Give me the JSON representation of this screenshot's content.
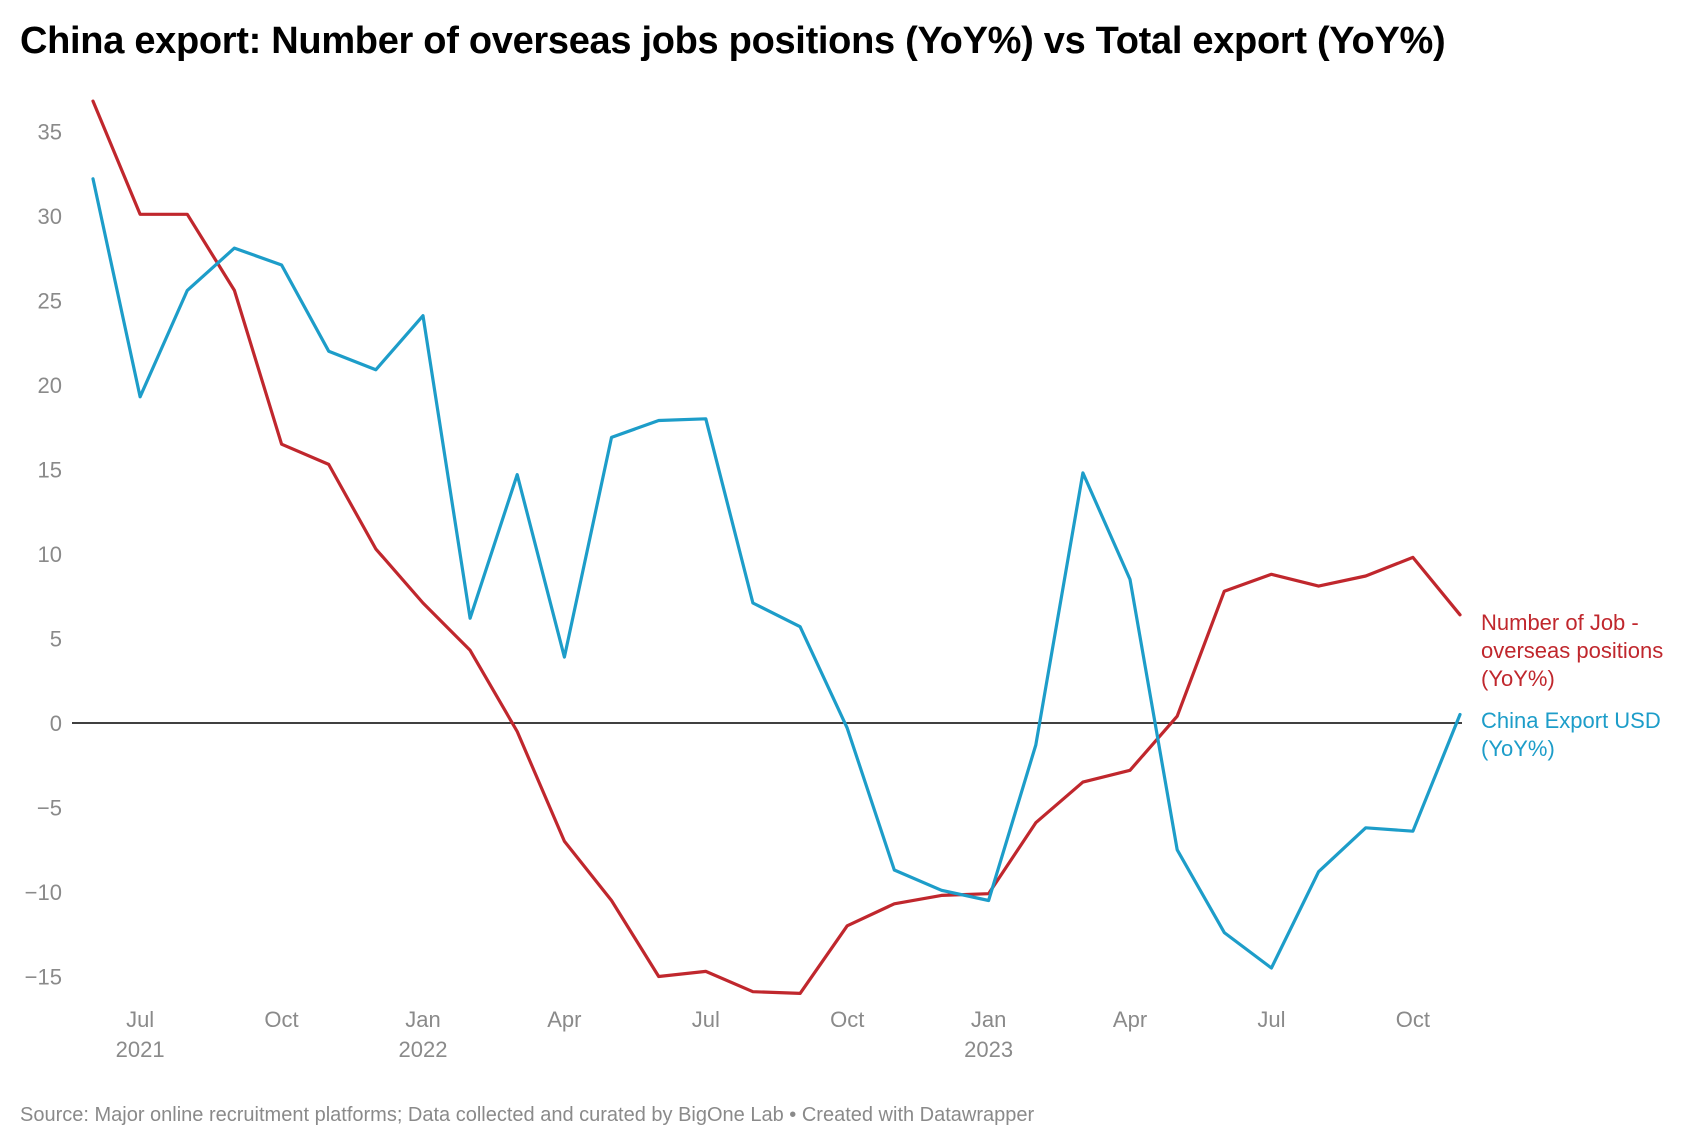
{
  "chart_data": {
    "type": "line",
    "title": "China export: Number of overseas jobs positions (YoY%) vs Total export (YoY%)",
    "source": "Source: Major online recruitment platforms; Data collected and curated by BigOne Lab • Created with Datawrapper",
    "x": [
      "2021-06",
      "2021-07",
      "2021-08",
      "2021-09",
      "2021-10",
      "2021-11",
      "2021-12",
      "2022-01",
      "2022-02",
      "2022-03",
      "2022-04",
      "2022-05",
      "2022-06",
      "2022-07",
      "2022-08",
      "2022-09",
      "2022-10",
      "2022-11",
      "2022-12",
      "2023-01",
      "2023-02",
      "2023-03",
      "2023-04",
      "2023-05",
      "2023-06",
      "2023-07",
      "2023-08",
      "2023-09",
      "2023-10",
      "2023-11"
    ],
    "x_ticks": [
      {
        "x": "2021-07",
        "label": "Jul",
        "year": "2021"
      },
      {
        "x": "2021-10",
        "label": "Oct",
        "year": ""
      },
      {
        "x": "2022-01",
        "label": "Jan",
        "year": "2022"
      },
      {
        "x": "2022-04",
        "label": "Apr",
        "year": ""
      },
      {
        "x": "2022-07",
        "label": "Jul",
        "year": ""
      },
      {
        "x": "2022-10",
        "label": "Oct",
        "year": ""
      },
      {
        "x": "2023-01",
        "label": "Jan",
        "year": "2023"
      },
      {
        "x": "2023-04",
        "label": "Apr",
        "year": ""
      },
      {
        "x": "2023-07",
        "label": "Jul",
        "year": ""
      },
      {
        "x": "2023-10",
        "label": "Oct",
        "year": ""
      }
    ],
    "y_ticks": [
      35,
      30,
      25,
      20,
      15,
      10,
      5,
      0,
      -5,
      -10,
      -15
    ],
    "y_tick_labels": [
      "35",
      "30",
      "25",
      "20",
      "15",
      "10",
      "5",
      "0",
      "−5",
      "−10",
      "−15"
    ],
    "ylim": [
      -16.5,
      37
    ],
    "grid": false,
    "zero_line": true,
    "series": [
      {
        "name": "Number of Job - overseas positions (YoY%)",
        "label_lines": [
          "Number of Job -",
          "overseas positions",
          "(YoY%)"
        ],
        "color": "#c0272d",
        "values": [
          36.8,
          30.1,
          30.1,
          25.6,
          16.5,
          15.3,
          10.3,
          7.1,
          4.3,
          -0.5,
          -7.0,
          -10.5,
          -15.0,
          -14.7,
          -15.9,
          -16.0,
          -12.0,
          -10.7,
          -10.2,
          -10.1,
          -5.9,
          -3.5,
          -2.8,
          0.4,
          7.8,
          8.8,
          8.1,
          8.7,
          9.8,
          6.4
        ]
      },
      {
        "name": "China Export USD (YoY%)",
        "label_lines": [
          "China Export USD",
          "(YoY%)"
        ],
        "color": "#1d9dc9",
        "values": [
          32.2,
          19.3,
          25.6,
          28.1,
          27.1,
          22.0,
          20.9,
          24.1,
          6.2,
          14.7,
          3.9,
          16.9,
          17.9,
          18.0,
          7.1,
          5.7,
          -0.3,
          -8.7,
          -9.9,
          -10.5,
          -1.3,
          14.8,
          8.5,
          -7.5,
          -12.4,
          -14.5,
          -8.8,
          -6.2,
          -6.4,
          0.5
        ]
      }
    ]
  }
}
